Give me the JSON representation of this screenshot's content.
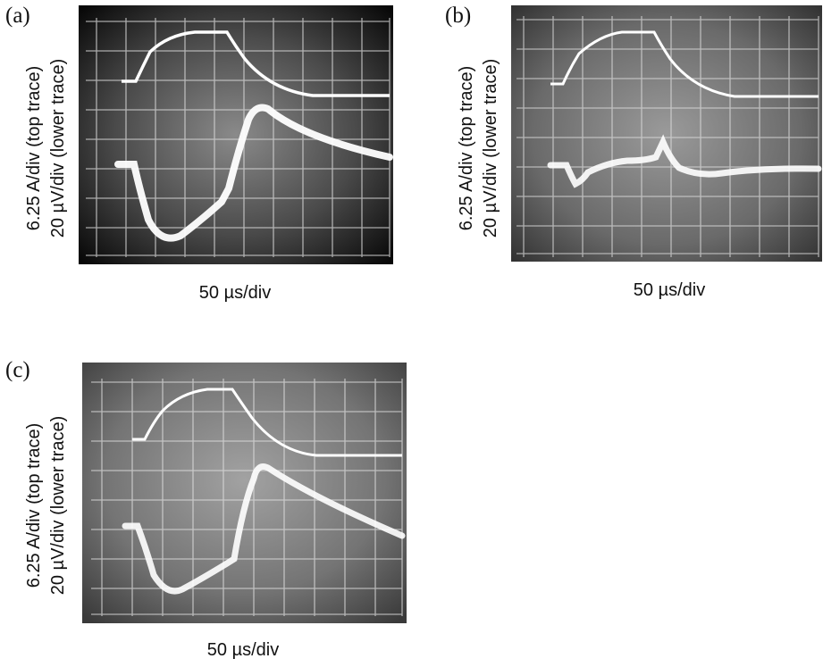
{
  "panels": [
    {
      "id": "a",
      "label": "(a)",
      "ylabel_top": "6.25 A/div (top trace)",
      "ylabel_bottom": "20 µV/div (lower trace)",
      "xlabel": "50 µs/div"
    },
    {
      "id": "b",
      "label": "(b)",
      "ylabel_top": "6.25 A/div (top trace)",
      "ylabel_bottom": "20 µV/div (lower trace)",
      "xlabel": "50 µs/div"
    },
    {
      "id": "c",
      "label": "(c)",
      "ylabel_top": "6.25 A/div (top trace)",
      "ylabel_bottom": "20 µV/div (lower trace)",
      "xlabel": "50 µs/div"
    }
  ],
  "colors": {
    "screen_dark": "#101010",
    "screen_mid": "#6e6e6e",
    "grid": "#dcdcdc",
    "trace": "#ffffff"
  }
}
